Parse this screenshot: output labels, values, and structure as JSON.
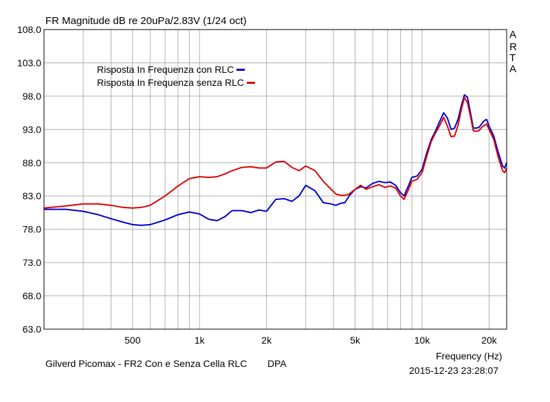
{
  "title": "FR Magnitude dB re 20uPa/2.83V (1/24 oct)",
  "watermark": [
    "A",
    "R",
    "T",
    "A"
  ],
  "footer_left": "Gilverd Picomax - FR2 Con e Senza Cella RLC",
  "footer_mid": "DPA",
  "xlabel": "Frequency (Hz)",
  "timestamp": "2015-12-23  23:28:07",
  "colors": {
    "blue": "#0000cc",
    "red": "#dd0000",
    "grid": "#b0b0b0",
    "axis": "#000000"
  },
  "chart_data": {
    "type": "line",
    "title": "FR Magnitude dB re 20uPa/2.83V (1/24 oct)",
    "xlabel": "Frequency (Hz)",
    "ylabel": "",
    "xscale": "log",
    "xlim": [
      200,
      24000
    ],
    "ylim": [
      63,
      108
    ],
    "grid": true,
    "legend_position": "top-left",
    "y_ticks": [
      "108.0",
      "103.0",
      "98.0",
      "93.0",
      "88.0",
      "83.0",
      "78.0",
      "73.0",
      "68.0",
      "63.0"
    ],
    "y_tick_values": [
      108,
      103,
      98,
      93,
      88,
      83,
      78,
      73,
      68,
      63
    ],
    "x_ticks": [
      {
        "value": 500,
        "label": "500"
      },
      {
        "value": 1000,
        "label": "1k"
      },
      {
        "value": 2000,
        "label": "2k"
      },
      {
        "value": 5000,
        "label": "5k"
      },
      {
        "value": 10000,
        "label": "10k"
      },
      {
        "value": 20000,
        "label": "20k"
      }
    ],
    "series": [
      {
        "name": "Risposta In Frequenza con RLC",
        "color": "#0000cc",
        "points": [
          [
            200,
            81.0
          ],
          [
            250,
            81.0
          ],
          [
            300,
            80.7
          ],
          [
            350,
            80.2
          ],
          [
            400,
            79.6
          ],
          [
            450,
            79.1
          ],
          [
            500,
            78.7
          ],
          [
            550,
            78.6
          ],
          [
            600,
            78.7
          ],
          [
            700,
            79.4
          ],
          [
            800,
            80.2
          ],
          [
            900,
            80.6
          ],
          [
            1000,
            80.3
          ],
          [
            1100,
            79.5
          ],
          [
            1200,
            79.3
          ],
          [
            1300,
            79.9
          ],
          [
            1400,
            80.8
          ],
          [
            1550,
            80.8
          ],
          [
            1700,
            80.5
          ],
          [
            1850,
            80.9
          ],
          [
            2000,
            80.7
          ],
          [
            2200,
            82.5
          ],
          [
            2400,
            82.6
          ],
          [
            2600,
            82.2
          ],
          [
            2800,
            83.0
          ],
          [
            3000,
            84.6
          ],
          [
            3300,
            83.8
          ],
          [
            3600,
            82.0
          ],
          [
            3900,
            81.8
          ],
          [
            4100,
            81.6
          ],
          [
            4300,
            81.9
          ],
          [
            4500,
            82.0
          ],
          [
            4700,
            83.0
          ],
          [
            5000,
            84.0
          ],
          [
            5300,
            84.4
          ],
          [
            5600,
            84.2
          ],
          [
            6000,
            84.9
          ],
          [
            6400,
            85.2
          ],
          [
            6800,
            85.0
          ],
          [
            7200,
            85.1
          ],
          [
            7600,
            84.6
          ],
          [
            8000,
            83.5
          ],
          [
            8300,
            83.0
          ],
          [
            8700,
            84.6
          ],
          [
            9000,
            85.8
          ],
          [
            9500,
            86.0
          ],
          [
            10000,
            87.0
          ],
          [
            10500,
            89.5
          ],
          [
            11000,
            91.5
          ],
          [
            11500,
            92.8
          ],
          [
            12000,
            94.2
          ],
          [
            12500,
            95.5
          ],
          [
            13000,
            94.7
          ],
          [
            13500,
            93.0
          ],
          [
            14000,
            93.2
          ],
          [
            14500,
            94.5
          ],
          [
            15000,
            96.5
          ],
          [
            15500,
            98.2
          ],
          [
            16000,
            97.8
          ],
          [
            16500,
            95.5
          ],
          [
            17000,
            93.2
          ],
          [
            17500,
            93.2
          ],
          [
            18000,
            93.3
          ],
          [
            18500,
            93.8
          ],
          [
            19000,
            94.3
          ],
          [
            19500,
            94.5
          ],
          [
            20000,
            93.5
          ],
          [
            21000,
            92.0
          ],
          [
            22000,
            89.5
          ],
          [
            23000,
            87.5
          ],
          [
            23500,
            87.2
          ],
          [
            24000,
            88.0
          ]
        ]
      },
      {
        "name": "Risposta In Frequenza senza RLC",
        "color": "#dd0000",
        "points": [
          [
            200,
            81.2
          ],
          [
            250,
            81.5
          ],
          [
            300,
            81.8
          ],
          [
            350,
            81.8
          ],
          [
            400,
            81.6
          ],
          [
            450,
            81.3
          ],
          [
            500,
            81.2
          ],
          [
            550,
            81.3
          ],
          [
            600,
            81.6
          ],
          [
            700,
            83.0
          ],
          [
            800,
            84.5
          ],
          [
            900,
            85.6
          ],
          [
            1000,
            85.9
          ],
          [
            1100,
            85.8
          ],
          [
            1200,
            85.9
          ],
          [
            1300,
            86.3
          ],
          [
            1400,
            86.8
          ],
          [
            1550,
            87.3
          ],
          [
            1700,
            87.4
          ],
          [
            1850,
            87.2
          ],
          [
            2000,
            87.2
          ],
          [
            2200,
            88.1
          ],
          [
            2400,
            88.2
          ],
          [
            2600,
            87.3
          ],
          [
            2800,
            86.8
          ],
          [
            3000,
            87.5
          ],
          [
            3300,
            86.8
          ],
          [
            3600,
            85.2
          ],
          [
            3900,
            84.0
          ],
          [
            4100,
            83.3
          ],
          [
            4300,
            83.1
          ],
          [
            4500,
            83.1
          ],
          [
            4700,
            83.3
          ],
          [
            5000,
            84.0
          ],
          [
            5300,
            84.6
          ],
          [
            5600,
            84.0
          ],
          [
            6000,
            84.4
          ],
          [
            6400,
            84.7
          ],
          [
            6800,
            84.3
          ],
          [
            7200,
            84.5
          ],
          [
            7600,
            84.2
          ],
          [
            8000,
            83.0
          ],
          [
            8300,
            82.5
          ],
          [
            8700,
            84.0
          ],
          [
            9000,
            85.2
          ],
          [
            9500,
            85.5
          ],
          [
            10000,
            86.5
          ],
          [
            10500,
            89.0
          ],
          [
            11000,
            91.2
          ],
          [
            11500,
            92.5
          ],
          [
            12000,
            93.6
          ],
          [
            12500,
            94.8
          ],
          [
            13000,
            93.5
          ],
          [
            13500,
            91.9
          ],
          [
            14000,
            92.0
          ],
          [
            14500,
            93.6
          ],
          [
            15000,
            95.9
          ],
          [
            15500,
            97.8
          ],
          [
            16000,
            97.0
          ],
          [
            16500,
            95.0
          ],
          [
            17000,
            92.8
          ],
          [
            17500,
            92.7
          ],
          [
            18000,
            92.8
          ],
          [
            18500,
            93.3
          ],
          [
            19000,
            93.6
          ],
          [
            19500,
            93.8
          ],
          [
            20000,
            93.0
          ],
          [
            21000,
            91.5
          ],
          [
            22000,
            88.8
          ],
          [
            23000,
            86.8
          ],
          [
            23500,
            86.5
          ],
          [
            24000,
            87.2
          ]
        ]
      }
    ]
  }
}
